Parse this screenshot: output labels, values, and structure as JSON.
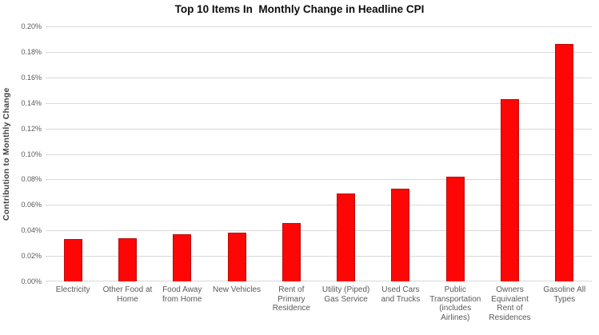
{
  "colors": {
    "bar_fill": "#fe0606",
    "bar_border": "#b90b0b",
    "gridline": "#d9d9d9",
    "tick_text": "#595959",
    "title_text": "#0d0d0d"
  },
  "chart_data": {
    "type": "bar",
    "title": "Top 10 Items In  Monthly Change in Headline CPI",
    "xlabel": "",
    "ylabel": "Contribution to Monthly Change",
    "unit": "%",
    "categories": [
      "Electricity",
      "Other Food at Home",
      "Food Away from Home",
      "New Vehicles",
      "Rent of Primary Residence",
      "Utility (Piped) Gas Service",
      "Used Cars and Trucks",
      "Public Transportation (includes Airlines)",
      "Owners Equivalent Rent of Residences",
      "Gasoline All Types"
    ],
    "values": [
      0.033,
      0.034,
      0.037,
      0.038,
      0.046,
      0.069,
      0.073,
      0.082,
      0.143,
      0.186
    ],
    "ylim": [
      0,
      0.2
    ],
    "ytick_step": 0.02,
    "ytick_labels": [
      "0.00%",
      "0.02%",
      "0.04%",
      "0.06%",
      "0.08%",
      "0.10%",
      "0.12%",
      "0.14%",
      "0.16%",
      "0.18%",
      "0.20%"
    ],
    "grid": true,
    "legend_position": "none",
    "series_color": "#fe0606"
  }
}
